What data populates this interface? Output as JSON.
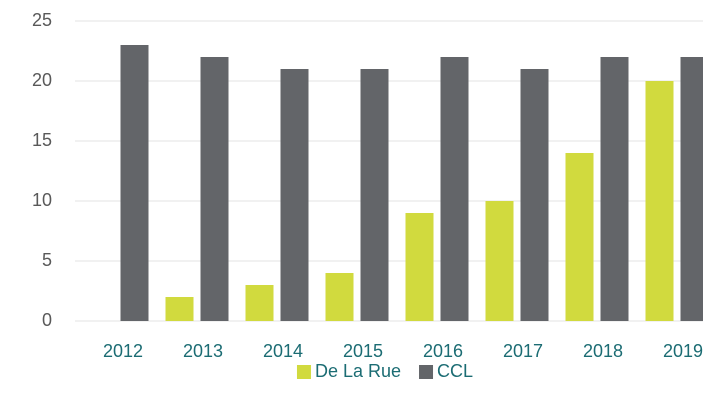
{
  "chart_data": {
    "type": "bar",
    "categories": [
      "2012",
      "2013",
      "2014",
      "2015",
      "2016",
      "2017",
      "2018",
      "2019"
    ],
    "series": [
      {
        "name": "De La Rue",
        "color": "#d1da3e",
        "values": [
          0,
          2,
          3,
          4,
          9,
          10,
          14,
          20
        ]
      },
      {
        "name": "CCL",
        "color": "#636569",
        "values": [
          23,
          22,
          21,
          21,
          22,
          21,
          22,
          22
        ]
      }
    ],
    "ylim": [
      0,
      25
    ],
    "yticks": [
      0,
      5,
      10,
      15,
      20,
      25
    ],
    "grid": true,
    "legend": "bottom"
  }
}
